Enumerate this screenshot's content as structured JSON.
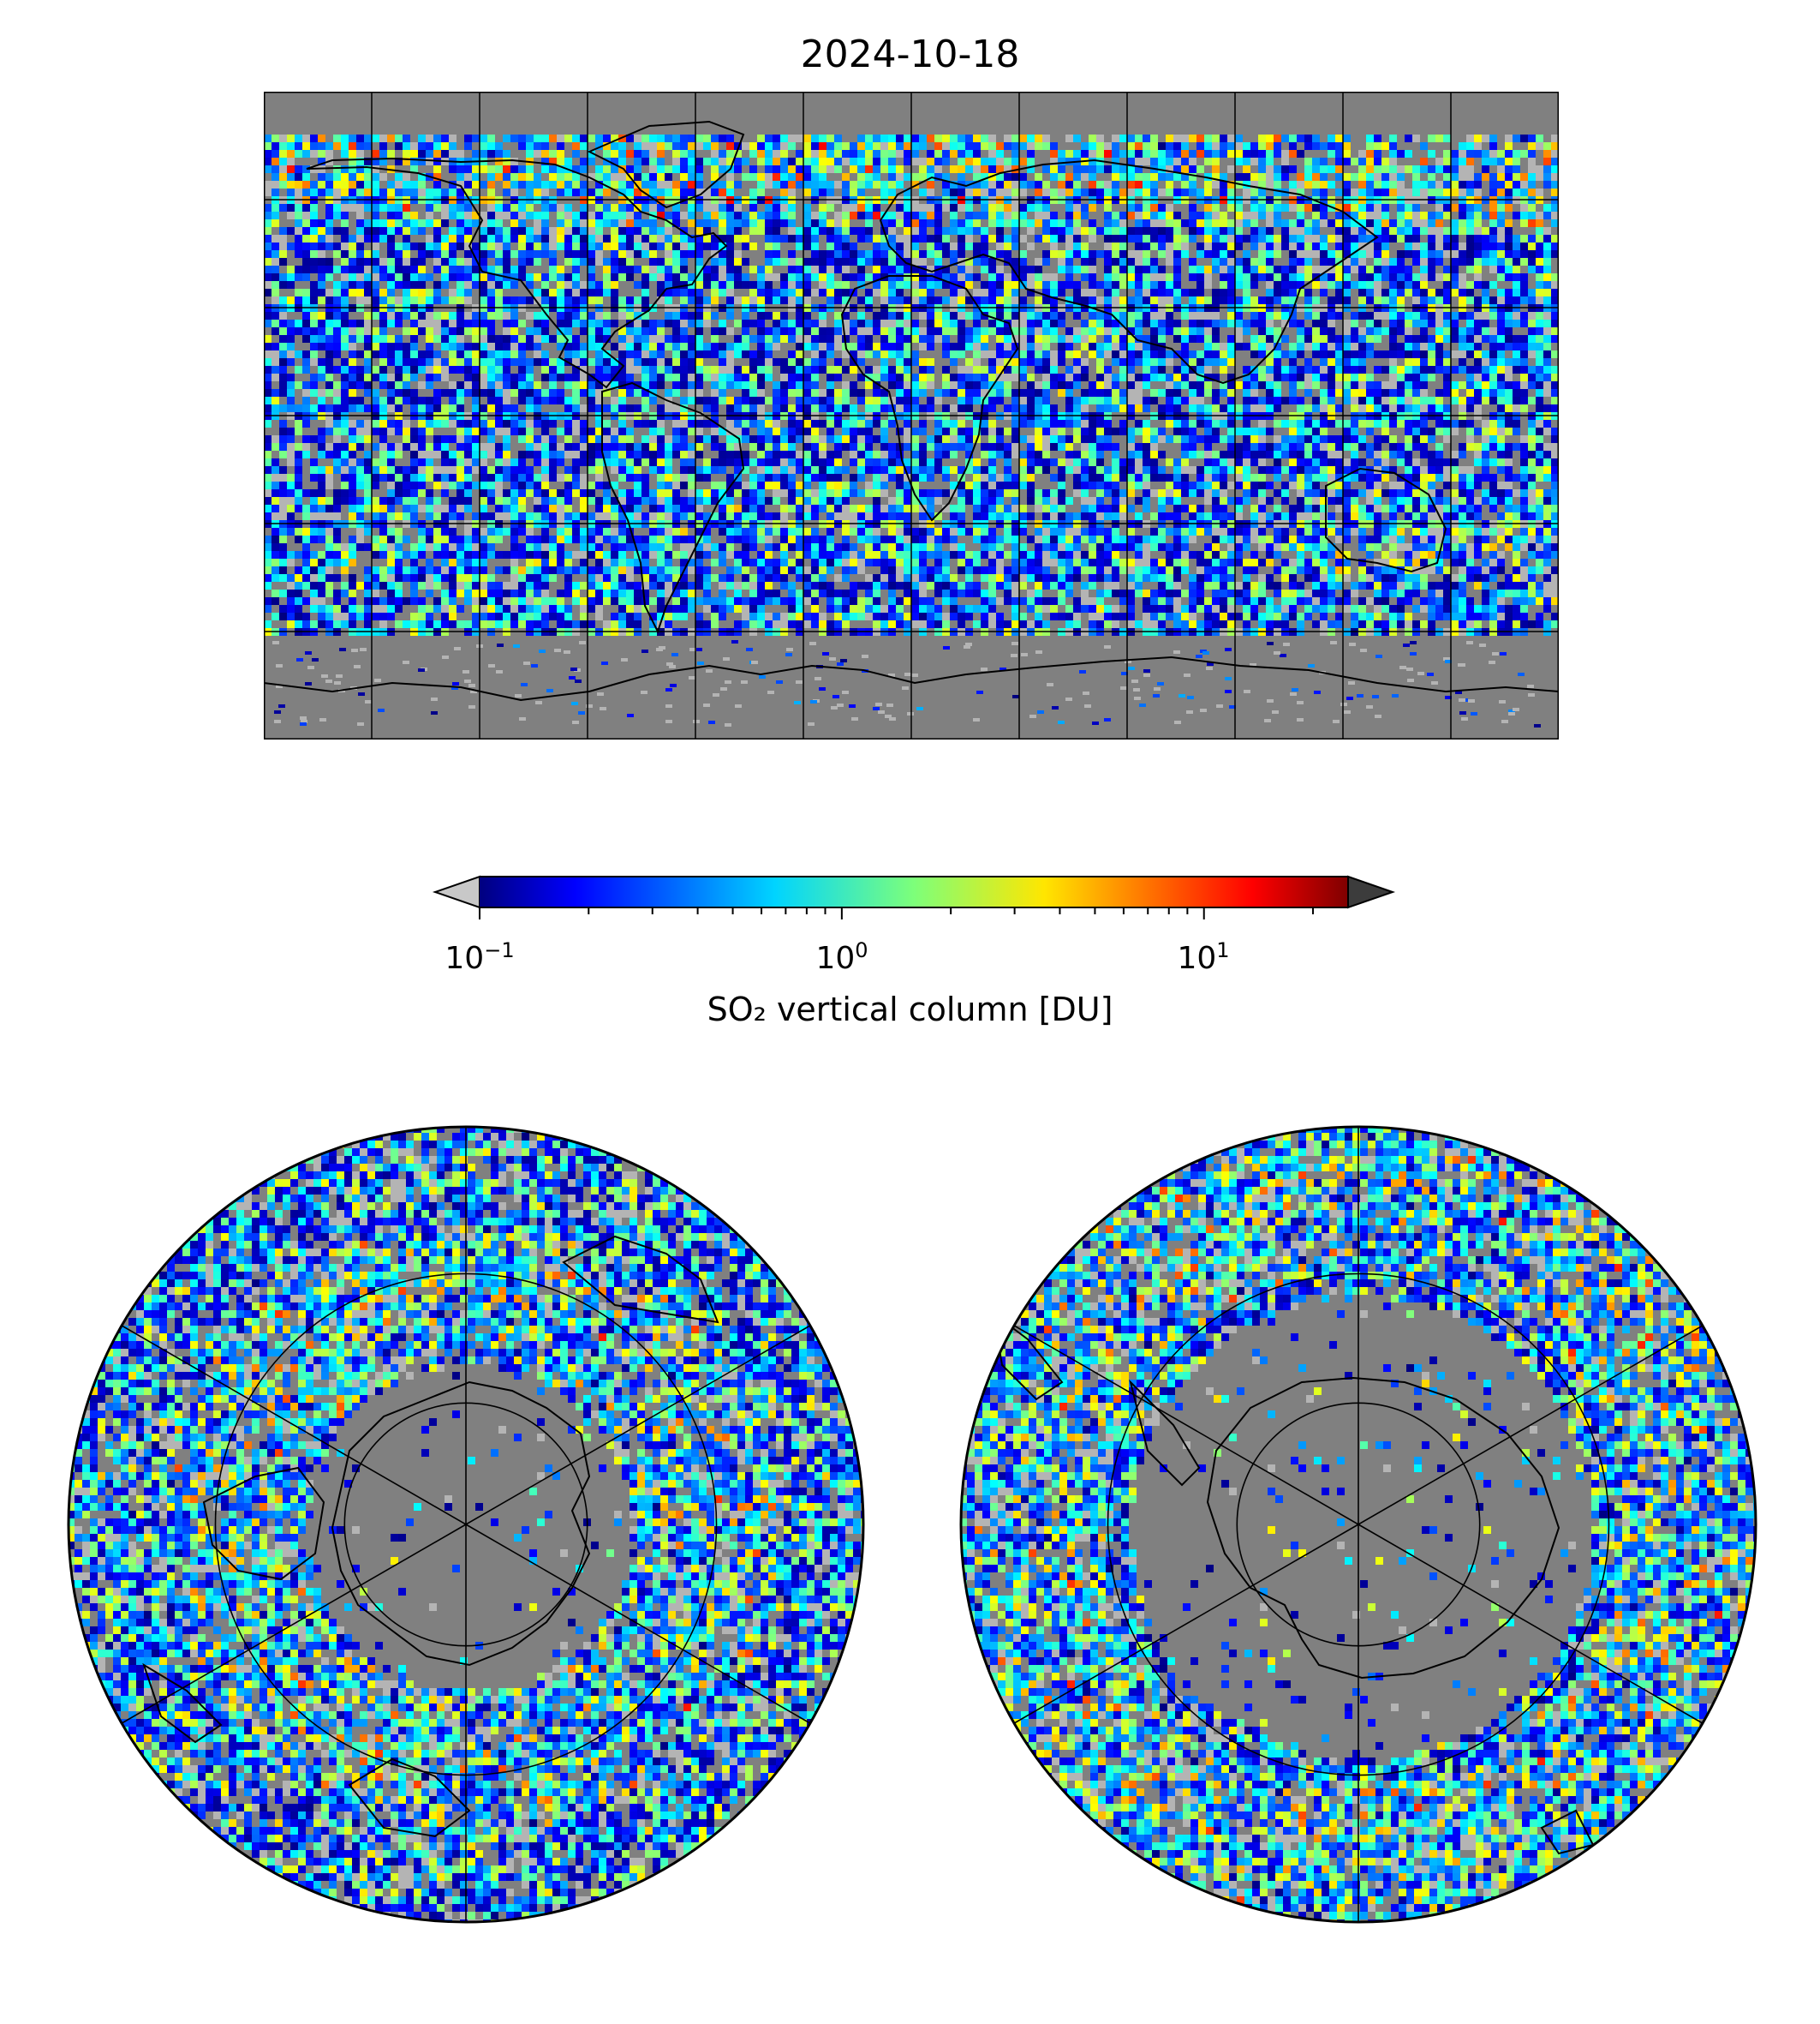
{
  "title": "2024-10-18",
  "colorbar": {
    "label": "SO₂ vertical column [DU]",
    "scale": "log",
    "vmin": 0.1,
    "vmax": 25,
    "ticks": [
      {
        "value": 0.1,
        "base": "10",
        "exp": "−1"
      },
      {
        "value": 1,
        "base": "10",
        "exp": "0"
      },
      {
        "value": 10,
        "base": "10",
        "exp": "1"
      }
    ],
    "colormap": "jet",
    "extend": "both",
    "under_color": "#c8c8c8",
    "over_color": "#3c3c3c"
  },
  "maps": [
    {
      "name": "world",
      "projection": "plate-carree",
      "gridlines_lon_step_deg": 30,
      "gridlines_lat_step_deg": 30
    },
    {
      "name": "north-polar",
      "projection": "north-polar-stereo",
      "parallels_deg": [
        30,
        50,
        70
      ],
      "meridians_step_deg": 60
    },
    {
      "name": "south-polar",
      "projection": "south-polar-stereo",
      "parallels_deg": [
        -30,
        -50,
        -70
      ],
      "meridians_step_deg": 60
    }
  ],
  "colors": {
    "no_data": "#808080",
    "low_value": "#b4b4b4",
    "coastline": "#000000"
  }
}
